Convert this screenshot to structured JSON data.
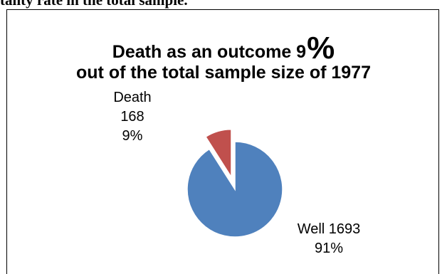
{
  "header": {
    "partial_heading": "tality rate in the total sample."
  },
  "chart_data": {
    "type": "pie",
    "title_main": "Death as an outcome 9",
    "title_emphasis": "%",
    "subtitle": "out of the total sample size of 1977",
    "slices": [
      {
        "name": "Death",
        "value": 168,
        "percent": "9%",
        "color": "#c0504d",
        "exploded": true
      },
      {
        "name": "Well",
        "value": 1693,
        "percent": "91%",
        "color": "#4f81bd",
        "exploded": false
      }
    ],
    "labels": {
      "death": {
        "line1": "Death",
        "line2": "168",
        "line3": "9%"
      },
      "well": {
        "line1": "Well 1693",
        "line2": "91%"
      }
    }
  }
}
